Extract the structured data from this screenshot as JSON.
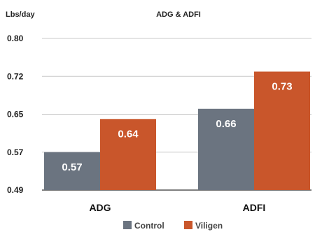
{
  "chart_data": {
    "type": "bar",
    "title": "ADG & ADFI",
    "ylabel": "Lbs/day",
    "xlabel": "",
    "categories": [
      "ADG",
      "ADFI"
    ],
    "series": [
      {
        "name": "Control",
        "values": [
          0.57,
          0.66
        ],
        "labels": [
          "0.57",
          "0.66"
        ],
        "color": "#6b7480"
      },
      {
        "name": "Viligen",
        "values": [
          0.64,
          0.73
        ],
        "labels": [
          "0.64",
          "0.73"
        ],
        "color": "#c9562b"
      }
    ],
    "yticks": [
      "0.80",
      "0.72",
      "0.65",
      "0.57",
      "0.49"
    ],
    "ylim": [
      0.49,
      0.8
    ],
    "grid": true,
    "legend": "bottom-center"
  }
}
